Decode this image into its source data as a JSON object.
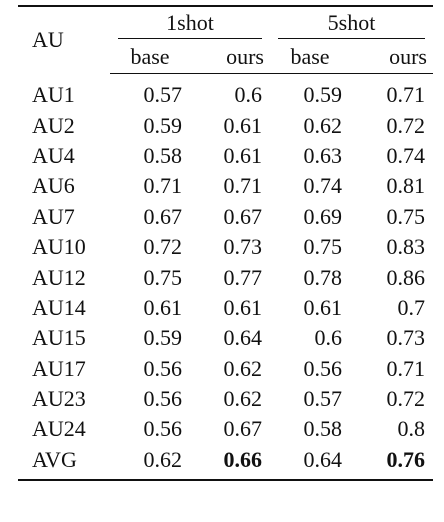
{
  "table": {
    "header": {
      "au": "AU",
      "groups": [
        "1shot",
        "5shot"
      ],
      "subheaders": [
        "base",
        "ours",
        "base",
        "ours"
      ]
    },
    "rows": [
      [
        "AU1",
        "0.57",
        "0.6",
        "0.59",
        "0.71"
      ],
      [
        "AU2",
        "0.59",
        "0.61",
        "0.62",
        "0.72"
      ],
      [
        "AU4",
        "0.58",
        "0.61",
        "0.63",
        "0.74"
      ],
      [
        "AU6",
        "0.71",
        "0.71",
        "0.74",
        "0.81"
      ],
      [
        "AU7",
        "0.67",
        "0.67",
        "0.69",
        "0.75"
      ],
      [
        "AU10",
        "0.72",
        "0.73",
        "0.75",
        "0.83"
      ],
      [
        "AU12",
        "0.75",
        "0.77",
        "0.78",
        "0.86"
      ],
      [
        "AU14",
        "0.61",
        "0.61",
        "0.61",
        "0.7"
      ],
      [
        "AU15",
        "0.59",
        "0.64",
        "0.6",
        "0.73"
      ],
      [
        "AU17",
        "0.56",
        "0.62",
        "0.56",
        "0.71"
      ],
      [
        "AU23",
        "0.56",
        "0.62",
        "0.57",
        "0.72"
      ],
      [
        "AU24",
        "0.56",
        "0.67",
        "0.58",
        "0.8"
      ],
      [
        "AVG",
        "0.62",
        "0.66",
        "0.64",
        "0.76"
      ]
    ]
  }
}
